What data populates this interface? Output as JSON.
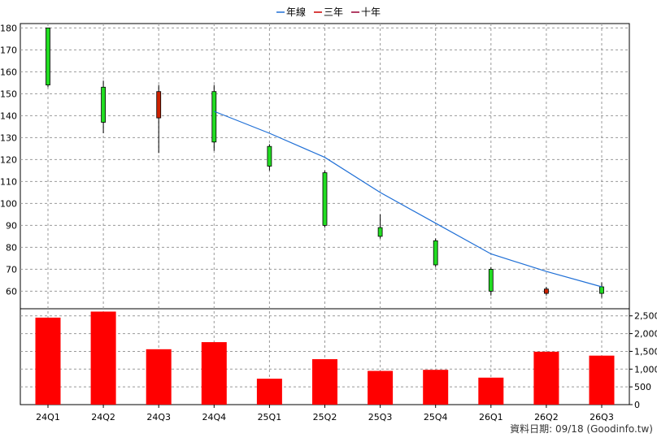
{
  "legend": {
    "items": [
      {
        "label": "年線",
        "color": "#1f6fd6"
      },
      {
        "label": "三年",
        "color": "#cc0000"
      },
      {
        "label": "十年",
        "color": "#990033"
      }
    ]
  },
  "footer": {
    "source_text": "資料日期: 09/18 (Goodinfo.tw)"
  },
  "colors": {
    "candle_up": "#22dd22",
    "candle_down": "#cc2200",
    "volume_bar": "#ff0000",
    "year_line": "#1f6fd6",
    "grid": "#999999"
  },
  "chart_data": [
    {
      "type": "candlestick",
      "categories": [
        "24Q1",
        "24Q2",
        "24Q3",
        "24Q4",
        "25Q1",
        "25Q2",
        "25Q3",
        "25Q4",
        "26Q1",
        "26Q2",
        "26Q3"
      ],
      "ohlc": [
        {
          "open": 154,
          "high": 180,
          "low": 153,
          "close": 180
        },
        {
          "open": 137,
          "high": 156,
          "low": 132,
          "close": 153
        },
        {
          "open": 151,
          "high": 154,
          "low": 123,
          "close": 139
        },
        {
          "open": 128,
          "high": 154,
          "low": 124,
          "close": 151
        },
        {
          "open": 117,
          "high": 127,
          "low": 115,
          "close": 126
        },
        {
          "open": 90,
          "high": 115,
          "low": 89,
          "close": 114
        },
        {
          "open": 85,
          "high": 95,
          "low": 84,
          "close": 89
        },
        {
          "open": 72,
          "high": 84,
          "low": 71,
          "close": 83
        },
        {
          "open": 60,
          "high": 71,
          "low": 58,
          "close": 70
        },
        {
          "open": 61,
          "high": 62,
          "low": 58,
          "close": 59
        },
        {
          "open": 59,
          "high": 64,
          "low": 57,
          "close": 62
        }
      ],
      "series": [
        {
          "name": "年線",
          "values": [
            null,
            null,
            null,
            142,
            132,
            121,
            105,
            91,
            77,
            69,
            62
          ]
        }
      ],
      "ylim": [
        52,
        182
      ],
      "yticks": [
        60,
        70,
        80,
        90,
        100,
        110,
        120,
        130,
        140,
        150,
        160,
        170,
        180
      ]
    },
    {
      "type": "bar",
      "categories": [
        "24Q1",
        "24Q2",
        "24Q3",
        "24Q4",
        "25Q1",
        "25Q2",
        "25Q3",
        "25Q4",
        "26Q1",
        "26Q2",
        "26Q3"
      ],
      "values": [
        2450,
        2620,
        1560,
        1760,
        730,
        1280,
        950,
        980,
        760,
        1490,
        1380
      ],
      "ylim": [
        0,
        2700
      ],
      "yticks": [
        0,
        500,
        1000,
        1500,
        2000,
        2500
      ],
      "ytick_labels": [
        "0",
        "500",
        "1,000",
        "1,500",
        "2,000",
        "2,500"
      ]
    }
  ]
}
